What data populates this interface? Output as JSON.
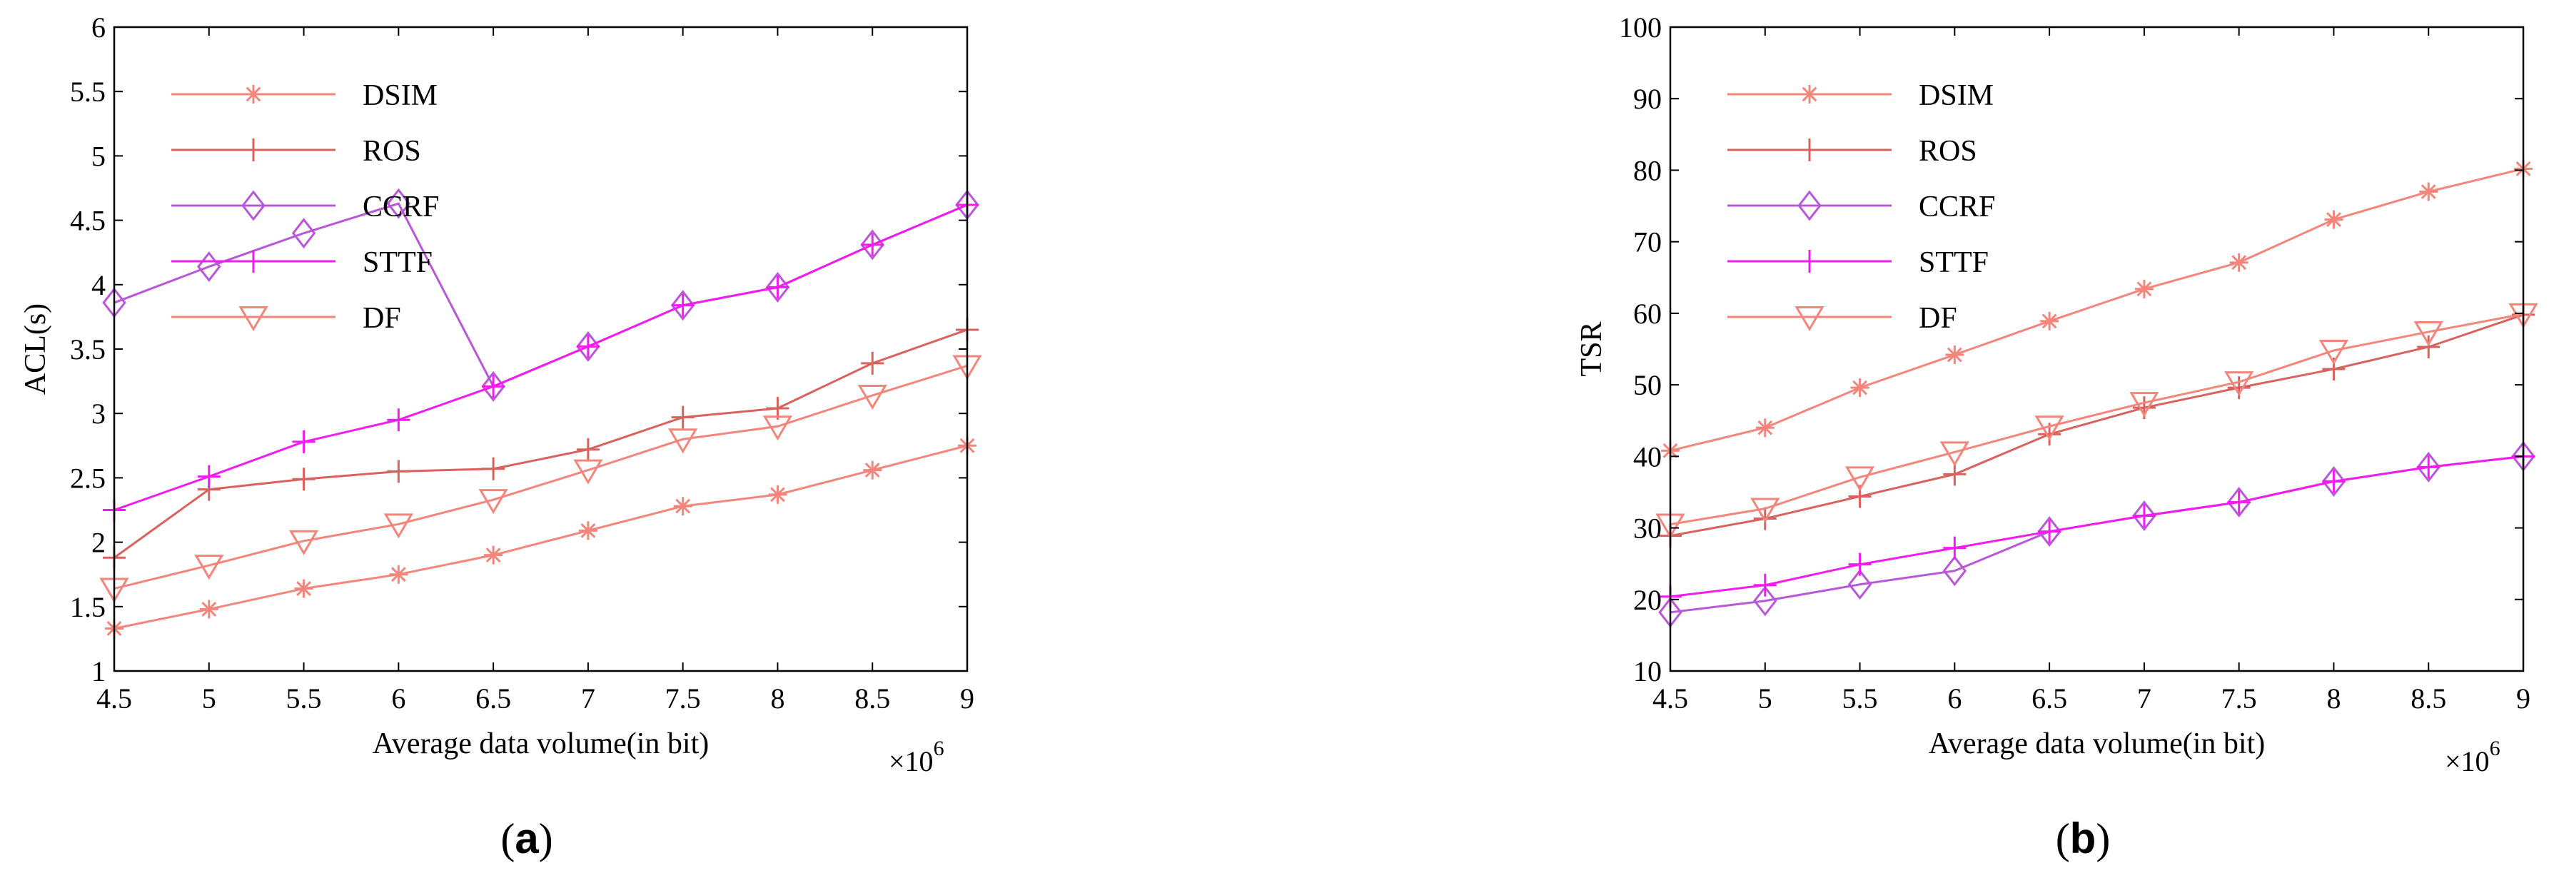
{
  "chart_data": [
    {
      "type": "line",
      "caption_open": "(",
      "caption_letter": "a",
      "caption_close": ")",
      "xlabel": "Average data volume(in bit)",
      "ylabel": "ACL(s)",
      "x_multiplier_base": "×10",
      "x_multiplier_exp": "6",
      "xlim": [
        4.5,
        9
      ],
      "ylim": [
        1,
        6
      ],
      "x_ticks": [
        "4.5",
        "5",
        "5.5",
        "6",
        "6.5",
        "7",
        "7.5",
        "8",
        "8.5",
        "9"
      ],
      "y_ticks": [
        "1",
        "1.5",
        "2",
        "2.5",
        "3",
        "3.5",
        "4",
        "4.5",
        "5",
        "5.5",
        "6"
      ],
      "grid": false,
      "legend_position": "top-left",
      "x": [
        4.5,
        5,
        5.5,
        6,
        6.5,
        7,
        7.5,
        8,
        8.5,
        9
      ],
      "series": [
        {
          "name": "DSIM",
          "marker": "asterisk",
          "color": "#f4857b",
          "values": [
            1.33,
            1.48,
            1.64,
            1.75,
            1.9,
            2.09,
            2.28,
            2.37,
            2.56,
            2.75
          ]
        },
        {
          "name": "ROS",
          "marker": "plus",
          "color": "#d9625e",
          "values": [
            1.88,
            2.41,
            2.49,
            2.55,
            2.57,
            2.72,
            2.97,
            3.04,
            3.39,
            3.65
          ]
        },
        {
          "name": "CCRF",
          "marker": "diamond",
          "color": "#b857d8",
          "values": [
            3.86,
            4.14,
            4.4,
            4.63,
            3.21,
            3.52,
            3.84,
            3.98,
            4.31,
            4.62
          ]
        },
        {
          "name": "STTF",
          "marker": "plus",
          "color": "#f21cf0",
          "values": [
            2.25,
            2.51,
            2.78,
            2.95,
            3.21,
            3.52,
            3.84,
            3.98,
            4.31,
            4.62
          ]
        },
        {
          "name": "DF",
          "marker": "triangle-down",
          "color": "#f4857b",
          "values": [
            1.64,
            1.82,
            2.01,
            2.14,
            2.33,
            2.56,
            2.8,
            2.9,
            3.14,
            3.37
          ]
        }
      ]
    },
    {
      "type": "line",
      "caption_open": "(",
      "caption_letter": "b",
      "caption_close": ")",
      "xlabel": "Average data volume(in bit)",
      "ylabel": "TSR",
      "x_multiplier_base": "×10",
      "x_multiplier_exp": "6",
      "xlim": [
        4.5,
        9
      ],
      "ylim": [
        10,
        100
      ],
      "x_ticks": [
        "4.5",
        "5",
        "5.5",
        "6",
        "6.5",
        "7",
        "7.5",
        "8",
        "8.5",
        "9"
      ],
      "y_ticks": [
        "10",
        "20",
        "30",
        "40",
        "50",
        "60",
        "70",
        "80",
        "90",
        "100"
      ],
      "grid": false,
      "legend_position": "top-left",
      "x": [
        4.5,
        5,
        5.5,
        6,
        6.5,
        7,
        7.5,
        8,
        8.5,
        9
      ],
      "series": [
        {
          "name": "DSIM",
          "marker": "asterisk",
          "color": "#f4857b",
          "values": [
            40.8,
            44.0,
            49.6,
            54.2,
            58.9,
            63.4,
            67.1,
            73.1,
            77.0,
            80.2
          ]
        },
        {
          "name": "ROS",
          "marker": "plus",
          "color": "#d9625e",
          "values": [
            28.9,
            31.3,
            34.4,
            37.5,
            43.1,
            46.8,
            49.6,
            52.2,
            55.3,
            59.8
          ]
        },
        {
          "name": "CCRF",
          "marker": "diamond",
          "color": "#b857d8",
          "values": [
            18.2,
            19.8,
            22.1,
            24.0,
            29.5,
            31.7,
            33.6,
            36.5,
            38.5,
            40.0
          ]
        },
        {
          "name": "STTF",
          "marker": "plus",
          "color": "#f21cf0",
          "values": [
            20.4,
            22.0,
            24.9,
            27.2,
            29.5,
            31.7,
            33.6,
            36.5,
            38.5,
            40.0
          ]
        },
        {
          "name": "DF",
          "marker": "triangle-down",
          "color": "#f4857b",
          "values": [
            30.5,
            32.7,
            37.1,
            40.6,
            44.2,
            47.5,
            50.4,
            54.8,
            57.4,
            59.9
          ]
        }
      ]
    }
  ]
}
